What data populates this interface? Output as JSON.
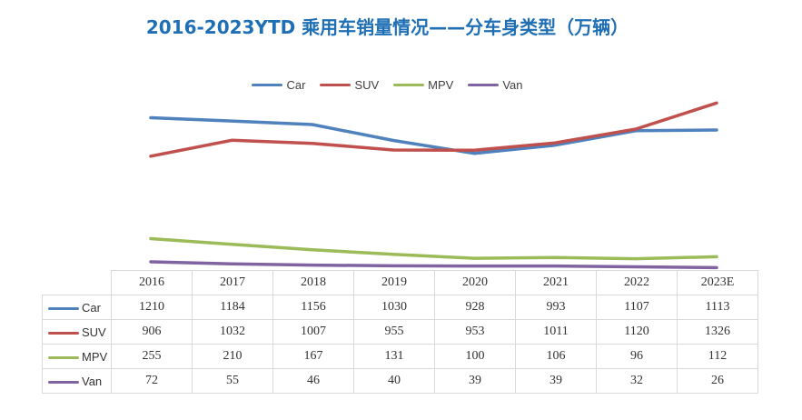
{
  "title": "2016-2023YTD 乘用车销量情况——分车身类型（万辆）",
  "chart_data": {
    "type": "line",
    "title": "2016-2023YTD 乘用车销量情况——分车身类型（万辆）",
    "categories": [
      "2016",
      "2017",
      "2018",
      "2019",
      "2020",
      "2021",
      "2022",
      "2023E"
    ],
    "series": [
      {
        "name": "Car",
        "color": "#4f81bd",
        "values": [
          1210,
          1184,
          1156,
          1030,
          928,
          993,
          1107,
          1113
        ]
      },
      {
        "name": "SUV",
        "color": "#c0504d",
        "values": [
          906,
          1032,
          1007,
          955,
          953,
          1011,
          1120,
          1326
        ]
      },
      {
        "name": "MPV",
        "color": "#9bbb59",
        "values": [
          255,
          210,
          167,
          131,
          100,
          106,
          96,
          112
        ]
      },
      {
        "name": "Van",
        "color": "#8064a2",
        "values": [
          72,
          55,
          46,
          40,
          39,
          39,
          32,
          26
        ]
      }
    ],
    "ylim": [
      0,
      1400
    ],
    "grid": false,
    "legend": "top-center"
  }
}
